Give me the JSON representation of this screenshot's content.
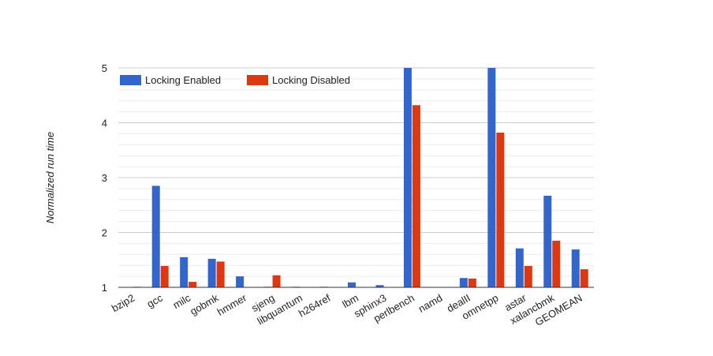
{
  "chart_data": {
    "type": "bar",
    "title": "",
    "xlabel": "",
    "ylabel": "Normalized run time",
    "ylim": [
      1,
      5
    ],
    "yticks": [
      1,
      2,
      3,
      4,
      5
    ],
    "grid": true,
    "legend_position": "top-left",
    "categories": [
      "bzip2",
      "gcc",
      "milc",
      "gobmk",
      "hmmer",
      "sjeng",
      "libquantum",
      "h264ref",
      "lbm",
      "sphinx3",
      "perlbench",
      "namd",
      "dealII",
      "omnetpp",
      "astar",
      "xalancbmk",
      "GEOMEAN"
    ],
    "series": [
      {
        "name": "Locking Enabled",
        "color": "#3366cc",
        "values": [
          1.0,
          2.85,
          1.55,
          1.52,
          1.2,
          1.01,
          1.01,
          1.01,
          1.09,
          1.04,
          5.0,
          1.0,
          1.17,
          5.0,
          1.71,
          2.67,
          1.69
        ]
      },
      {
        "name": "Locking Disabled",
        "color": "#dc3912",
        "values": [
          1.01,
          1.39,
          1.1,
          1.47,
          1.0,
          1.22,
          1.0,
          1.0,
          1.0,
          1.0,
          4.32,
          1.0,
          1.16,
          3.82,
          1.39,
          1.85,
          1.33
        ]
      }
    ]
  }
}
